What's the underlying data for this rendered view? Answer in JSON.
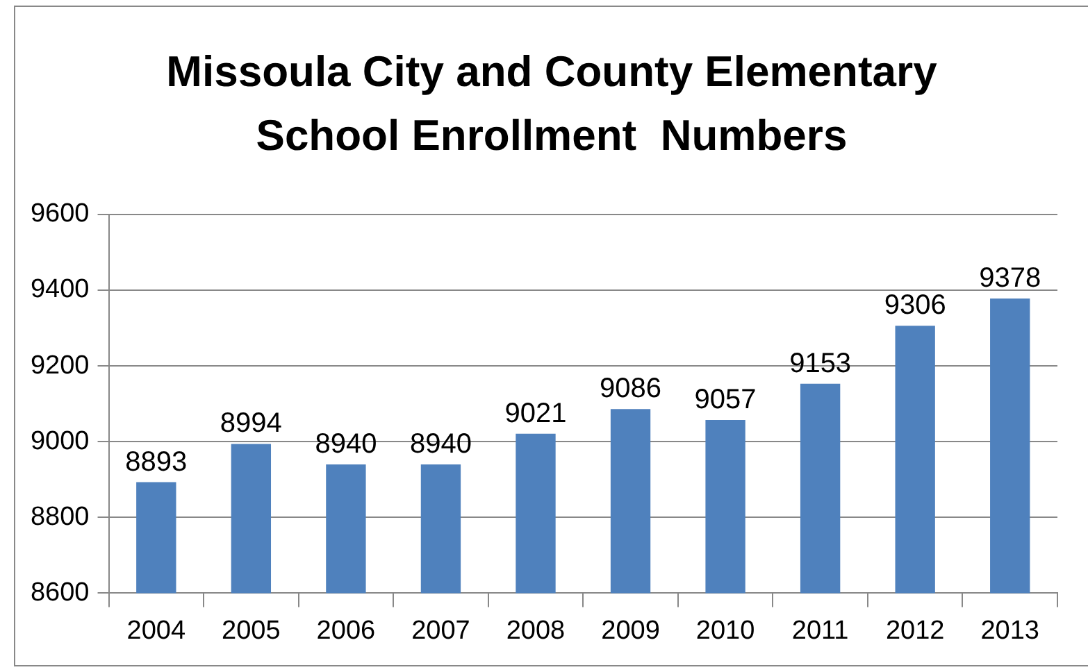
{
  "chart_data": {
    "type": "bar",
    "title": "Missoula City and County Elementary School Enrollment  Numbers",
    "categories": [
      "2004",
      "2005",
      "2006",
      "2007",
      "2008",
      "2009",
      "2010",
      "2011",
      "2012",
      "2013"
    ],
    "values": [
      8893,
      8994,
      8940,
      8940,
      9021,
      9086,
      9057,
      9153,
      9306,
      9378
    ],
    "color": "#4f81bd",
    "ylim": [
      8600,
      9600
    ],
    "yticks": [
      8600,
      8800,
      9000,
      9200,
      9400,
      9600
    ],
    "grid": "y",
    "data_labels": true
  }
}
